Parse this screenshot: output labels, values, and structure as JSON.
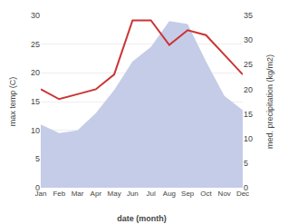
{
  "chart_data": {
    "type": "area",
    "categories": [
      "Jan",
      "Feb",
      "Mar",
      "Apr",
      "May",
      "Jun",
      "Jul",
      "Aug",
      "Sep",
      "Oct",
      "Nov",
      "Dec"
    ],
    "series": [
      {
        "type": "area",
        "color": "#c5cce8",
        "values": [
          11,
          9.5,
          10,
          13,
          17,
          22,
          24.5,
          29,
          28.5,
          22,
          16,
          13.5
        ]
      },
      {
        "type": "line",
        "color": "#cc3333",
        "axis": "y2",
        "values": [
          20,
          18,
          19,
          20,
          23,
          34,
          34,
          29,
          32,
          31,
          27,
          23
        ]
      }
    ],
    "xlabel": "date (month)",
    "ylabel": "max temp (C)",
    "y2label": "med. precipitation (kg/m2)",
    "ylim": [
      0,
      30
    ],
    "yticks": [
      0,
      5,
      10,
      15,
      20,
      25,
      30
    ],
    "y2lim": [
      0,
      35
    ],
    "y2ticks": [
      0,
      5,
      10,
      15,
      20,
      25,
      30,
      35
    ],
    "grid": true
  }
}
